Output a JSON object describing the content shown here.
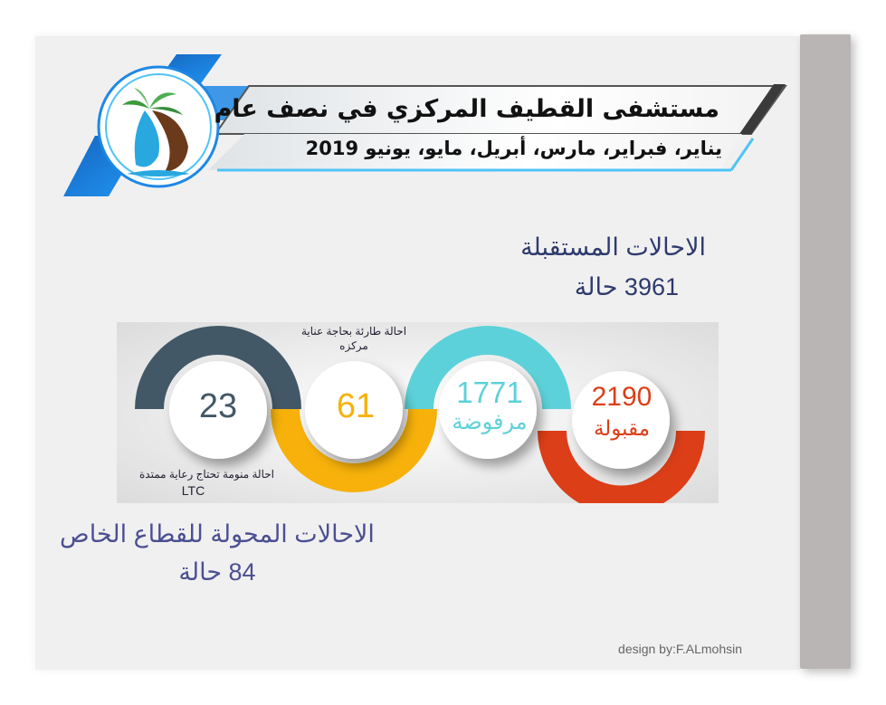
{
  "header": {
    "title_line1": "مستشفى القطيف المركزي في نصف عام",
    "title_line2": "يناير، فبراير، مارس، أبريل، مايو، يونيو 2019"
  },
  "received": {
    "label": "الاحالات المستقبلة",
    "value": "3961 حالة"
  },
  "stats": [
    {
      "value": "2190",
      "label": "مقبولة",
      "color": "#dc3e17"
    },
    {
      "value": "1771",
      "label": "مرفوضة",
      "color": "#5dd1d9"
    },
    {
      "value": "61",
      "label": "",
      "color": "#f7b10a"
    },
    {
      "value": "23",
      "label": "",
      "color": "#435866"
    }
  ],
  "notes": {
    "emergency": "احالة طارئة بحاجة عناية مركزه",
    "ltc_line1": "احالة منومة تحتاج رعاية ممتدة",
    "ltc_line2": "LTC"
  },
  "transferred": {
    "label": "الاحالات المحولة للقطاع الخاص",
    "value": "84 حالة"
  },
  "credit": "design by:F.ALmohsin",
  "colors": {
    "accepted": "#dc3e17",
    "rejected": "#5dd1d9",
    "icu": "#f7b10a",
    "ltc": "#435866",
    "banner_blue": "#1a7fd6"
  }
}
